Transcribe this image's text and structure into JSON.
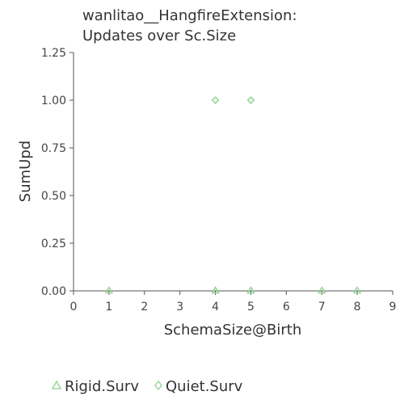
{
  "chart_data": {
    "type": "scatter",
    "title_lines": [
      "wanlitao__HangfireExtension:",
      "Updates over Sc.Size"
    ],
    "xlabel": "SchemaSize@Birth",
    "ylabel": "SumUpd",
    "xlim": [
      0,
      9
    ],
    "ylim": [
      0,
      1.25
    ],
    "x_ticks": [
      "0",
      "1",
      "2",
      "3",
      "4",
      "5",
      "6",
      "7",
      "8",
      "9"
    ],
    "y_ticks": [
      "0.00",
      "0.25",
      "0.50",
      "0.75",
      "1.00",
      "1.25"
    ],
    "grid": false,
    "legend_position": "bottom",
    "series": [
      {
        "name": "Rigid.Surv",
        "marker": "triangle",
        "color": "#8fd18f",
        "points": [
          {
            "x": 1,
            "y": 0
          },
          {
            "x": 4,
            "y": 0
          },
          {
            "x": 4,
            "y": 0
          },
          {
            "x": 5,
            "y": 0
          },
          {
            "x": 5,
            "y": 0
          },
          {
            "x": 7,
            "y": 0
          },
          {
            "x": 8,
            "y": 0
          }
        ]
      },
      {
        "name": "Quiet.Surv",
        "marker": "diamond",
        "color": "#8fd18f",
        "points": [
          {
            "x": 4,
            "y": 1
          },
          {
            "x": 5,
            "y": 1
          }
        ]
      }
    ]
  }
}
